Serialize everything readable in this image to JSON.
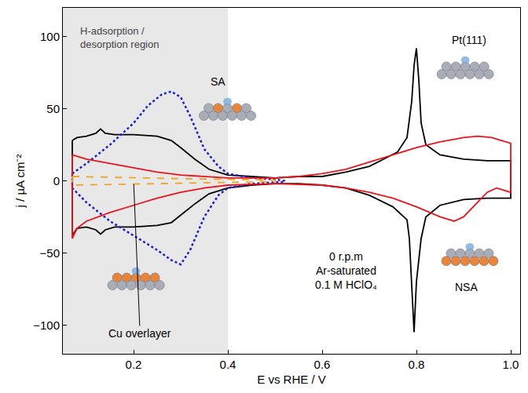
{
  "chart_data": {
    "type": "line",
    "x_label": "E vs RHE / V",
    "y_label": "j / µA cm⁻²",
    "xlim": [
      0.05,
      1.02
    ],
    "ylim": [
      -120,
      120
    ],
    "xticks": [
      0.2,
      0.4,
      0.6,
      0.8,
      {
        "value": 1,
        "label": "1.0"
      }
    ],
    "yticks": [
      -100,
      -50,
      0,
      50,
      100
    ],
    "grid": false,
    "shaded_region": {
      "x": [
        0.05,
        0.4
      ],
      "label": "H-adsorption / desorption region"
    },
    "conditions": [
      "0 r.p.m",
      "Ar-saturated",
      "0.1 M HClO₄"
    ],
    "series": [
      {
        "name": "Pt(111)",
        "color": "#000000",
        "line_style": "solid",
        "x": [
          0.07,
          0.08,
          0.1,
          0.12,
          0.13,
          0.14,
          0.16,
          0.2,
          0.25,
          0.28,
          0.3,
          0.33,
          0.36,
          0.4,
          0.45,
          0.5,
          0.55,
          0.6,
          0.65,
          0.7,
          0.73,
          0.76,
          0.78,
          0.79,
          0.795,
          0.8,
          0.805,
          0.81,
          0.82,
          0.85,
          0.9,
          0.95,
          1.0,
          1.0,
          0.95,
          0.9,
          0.85,
          0.82,
          0.81,
          0.8,
          0.795,
          0.79,
          0.785,
          0.78,
          0.75,
          0.7,
          0.65,
          0.6,
          0.55,
          0.5,
          0.45,
          0.4,
          0.36,
          0.33,
          0.3,
          0.28,
          0.25,
          0.2,
          0.16,
          0.14,
          0.13,
          0.12,
          0.1,
          0.08,
          0.07,
          0.07
        ],
        "values": [
          28,
          30,
          31,
          33,
          36,
          33,
          32,
          32,
          31,
          28,
          23,
          15,
          8,
          4,
          3,
          2,
          3,
          3,
          6,
          10,
          15,
          20,
          30,
          55,
          80,
          92,
          70,
          40,
          25,
          18,
          15,
          14,
          14,
          -12,
          -12,
          -13,
          -17,
          -25,
          -40,
          -70,
          -105,
          -70,
          -40,
          -27,
          -18,
          -10,
          -5,
          -3,
          -2,
          -2,
          -3,
          -5,
          -9,
          -16,
          -24,
          -29,
          -31,
          -32,
          -32,
          -34,
          -37,
          -34,
          -32,
          -33,
          -38,
          28
        ]
      },
      {
        "name": "SA",
        "color": "#1f1fc8",
        "line_style": "dotted",
        "x": [
          0.07,
          0.1,
          0.15,
          0.2,
          0.23,
          0.26,
          0.28,
          0.3,
          0.32,
          0.35,
          0.38,
          0.4,
          0.45,
          0.5,
          0.52,
          0.52,
          0.5,
          0.45,
          0.4,
          0.38,
          0.35,
          0.32,
          0.3,
          0.28,
          0.25,
          0.2,
          0.15,
          0.1,
          0.07,
          0.07
        ],
        "values": [
          5,
          12,
          25,
          40,
          52,
          60,
          62,
          58,
          45,
          22,
          10,
          5,
          2,
          1,
          0,
          -1,
          -1,
          -2,
          -5,
          -10,
          -25,
          -48,
          -58,
          -55,
          -48,
          -38,
          -28,
          -15,
          -5,
          5
        ]
      },
      {
        "name": "NSA",
        "color": "#e8141e",
        "line_style": "solid",
        "x": [
          0.07,
          0.1,
          0.15,
          0.2,
          0.25,
          0.3,
          0.35,
          0.4,
          0.5,
          0.55,
          0.6,
          0.65,
          0.7,
          0.75,
          0.8,
          0.85,
          0.9,
          0.93,
          0.96,
          0.98,
          1.0,
          1.0,
          0.97,
          0.95,
          0.92,
          0.9,
          0.88,
          0.85,
          0.8,
          0.75,
          0.7,
          0.65,
          0.6,
          0.5,
          0.4,
          0.35,
          0.3,
          0.25,
          0.2,
          0.15,
          0.1,
          0.08,
          0.07,
          0.07
        ],
        "values": [
          18,
          15,
          12,
          9,
          6,
          4,
          3,
          2,
          2,
          3,
          5,
          8,
          13,
          18,
          23,
          27,
          30,
          31,
          30,
          28,
          26,
          -8,
          -5,
          -8,
          -18,
          -25,
          -28,
          -25,
          -18,
          -12,
          -8,
          -5,
          -3,
          -2,
          -3,
          -5,
          -8,
          -12,
          -17,
          -22,
          -28,
          -33,
          -40,
          18
        ]
      },
      {
        "name": "Cu overlayer",
        "color": "#f5a020",
        "line_style": "dashed",
        "x": [
          0.07,
          0.2,
          0.3,
          0.4,
          0.5,
          0.5,
          0.4,
          0.3,
          0.2,
          0.07,
          0.07
        ],
        "values": [
          3,
          2,
          1.5,
          1,
          0.5,
          -0.5,
          -1,
          -1.5,
          -2,
          -3,
          3
        ]
      }
    ]
  }
}
